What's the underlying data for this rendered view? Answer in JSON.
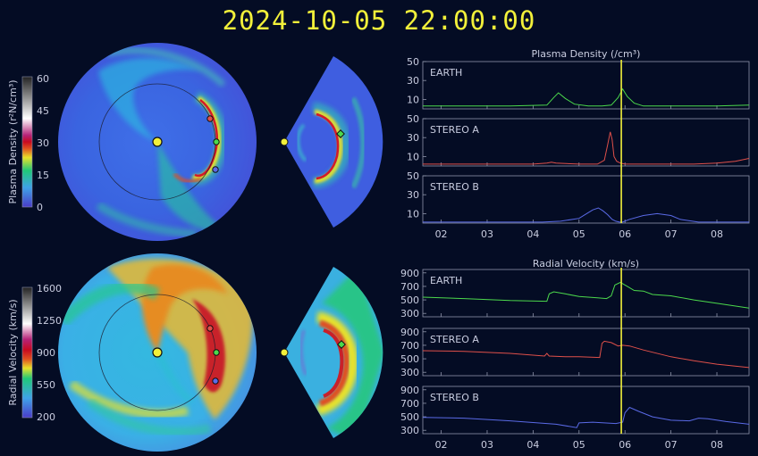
{
  "title": "2024-10-05 22:00:00",
  "colors": {
    "background": "#040c24",
    "title": "#f2f03a",
    "earth": "#4cd94c",
    "stereo_a": "#e0504a",
    "stereo_b": "#5a6ae6",
    "time_marker": "#f2f03a"
  },
  "colorbars": {
    "density": {
      "label": "Plasma Density (r²N/cm³)",
      "ticks": [
        "60",
        "45",
        "30",
        "15",
        "0"
      ]
    },
    "velocity": {
      "label": "Radial Velocity (km/s)",
      "ticks": [
        "1600",
        "1250",
        "900",
        "550",
        "200"
      ]
    }
  },
  "chart_data": [
    {
      "type": "line",
      "title": "Plasma Density (/cm³)",
      "x_tick_labels": [
        "02",
        "03",
        "04",
        "05",
        "06",
        "07",
        "08"
      ],
      "x_range": [
        1.6,
        8.7
      ],
      "current_time": 5.92,
      "panels": [
        {
          "name": "EARTH",
          "ylim": [
            0,
            50
          ],
          "yticks": [
            "50",
            "30",
            "10"
          ],
          "x": [
            1.6,
            2.5,
            3.5,
            4.3,
            4.45,
            4.55,
            4.7,
            4.9,
            5.2,
            5.5,
            5.7,
            5.85,
            5.95,
            6.05,
            6.2,
            6.4,
            6.6,
            7.0,
            7.5,
            8.0,
            8.7
          ],
          "values": [
            3,
            3,
            3,
            4,
            12,
            17,
            11,
            5,
            3,
            3,
            4,
            12,
            21,
            13,
            6,
            3,
            3,
            3,
            3,
            3,
            4
          ]
        },
        {
          "name": "STEREO A",
          "ylim": [
            0,
            50
          ],
          "yticks": [
            "50",
            "30",
            "10"
          ],
          "x": [
            1.6,
            3,
            4,
            4.3,
            4.4,
            4.5,
            5,
            5.4,
            5.55,
            5.62,
            5.68,
            5.72,
            5.76,
            5.82,
            5.9,
            6.0,
            6.5,
            7.0,
            7.5,
            8.0,
            8.4,
            8.7
          ],
          "values": [
            2,
            2,
            2,
            3,
            4,
            3,
            2,
            2,
            6,
            22,
            36,
            28,
            10,
            5,
            3,
            2,
            2,
            2,
            2,
            3,
            5,
            8
          ]
        },
        {
          "name": "STEREO B",
          "ylim": [
            0,
            50
          ],
          "yticks": [
            "50",
            "30",
            "10"
          ],
          "x": [
            1.6,
            2.5,
            3.5,
            4.2,
            4.6,
            5.0,
            5.2,
            5.3,
            5.42,
            5.52,
            5.62,
            5.72,
            5.8,
            5.88,
            5.95,
            6.1,
            6.4,
            6.7,
            7.0,
            7.2,
            7.6,
            8.0,
            8.7
          ],
          "values": [
            1,
            1,
            1,
            1,
            2,
            5,
            11,
            14,
            16,
            13,
            9,
            4,
            2,
            1,
            1,
            4,
            8,
            10,
            8,
            4,
            1,
            1,
            1
          ]
        }
      ]
    },
    {
      "type": "line",
      "title": "Radial Velocity (km/s)",
      "x_tick_labels": [
        "02",
        "03",
        "04",
        "05",
        "06",
        "07",
        "08"
      ],
      "x_range": [
        1.6,
        8.7
      ],
      "current_time": 5.92,
      "panels": [
        {
          "name": "EARTH",
          "ylim": [
            250,
            950
          ],
          "yticks": [
            "900",
            "700",
            "500",
            "300"
          ],
          "x": [
            1.6,
            2.5,
            3.5,
            4.3,
            4.35,
            4.45,
            4.7,
            5.0,
            5.4,
            5.6,
            5.7,
            5.78,
            5.9,
            6.05,
            6.2,
            6.4,
            6.6,
            7.0,
            7.5,
            8.0,
            8.7
          ],
          "values": [
            540,
            520,
            490,
            480,
            590,
            620,
            590,
            550,
            530,
            520,
            560,
            720,
            760,
            700,
            640,
            630,
            580,
            560,
            500,
            450,
            380
          ]
        },
        {
          "name": "STEREO A",
          "ylim": [
            250,
            950
          ],
          "yticks": [
            "900",
            "700",
            "500",
            "300"
          ],
          "x": [
            1.6,
            2.5,
            3.5,
            4.25,
            4.3,
            4.35,
            4.7,
            5.0,
            5.45,
            5.5,
            5.55,
            5.7,
            5.85,
            5.95,
            6.1,
            6.4,
            7.0,
            7.5,
            8.0,
            8.7
          ],
          "values": [
            620,
            610,
            580,
            540,
            580,
            540,
            530,
            530,
            520,
            730,
            760,
            740,
            690,
            700,
            690,
            630,
            530,
            470,
            420,
            370
          ]
        },
        {
          "name": "STEREO B",
          "ylim": [
            250,
            950
          ],
          "yticks": [
            "900",
            "700",
            "500",
            "300"
          ],
          "x": [
            1.6,
            2.5,
            3.5,
            4.5,
            4.95,
            5.0,
            5.3,
            5.8,
            5.95,
            6.0,
            6.1,
            6.3,
            6.6,
            7.0,
            7.4,
            7.6,
            7.8,
            8.2,
            8.7
          ],
          "values": [
            490,
            480,
            440,
            390,
            340,
            410,
            420,
            400,
            420,
            560,
            640,
            580,
            500,
            450,
            440,
            480,
            470,
            430,
            390
          ]
        }
      ]
    }
  ]
}
